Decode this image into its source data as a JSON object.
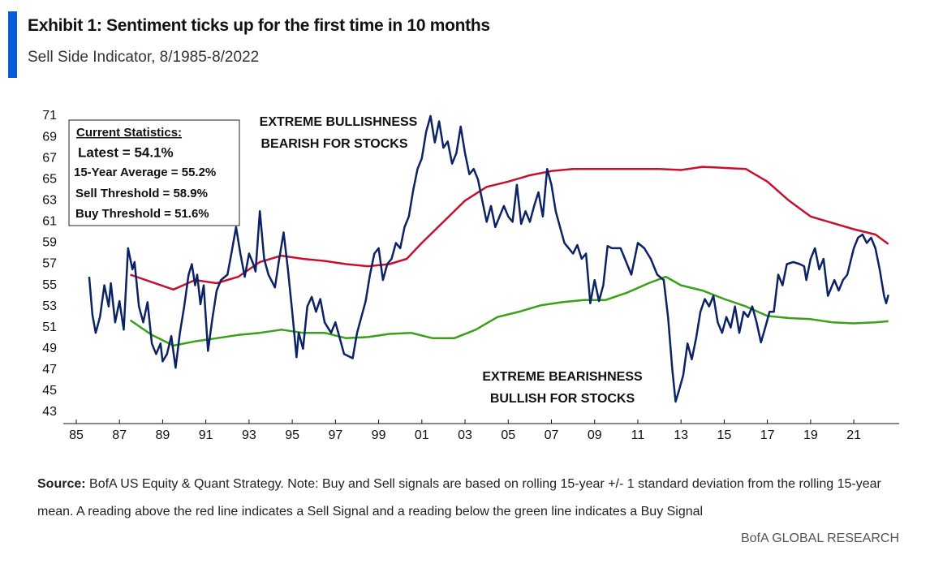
{
  "chart_data": {
    "type": "line",
    "title": "Exhibit 1: Sentiment ticks up for the first time in 10 months",
    "subtitle": "Sell Side Indicator, 8/1985-8/2022",
    "stats_box": [
      "Current Statistics:",
      "Latest = 54.1%",
      "15-Year Average = 55.2%",
      "Sell Threshold = 58.9%",
      "Buy Threshold = 51.6%"
    ],
    "annotations": [
      "EXTREME BULLISHNESS",
      "BEARISH FOR STOCKS",
      "EXTREME BEARISHNESS",
      "BULLISH FOR STOCKS"
    ],
    "source_label": "Source:",
    "source_text": "BofA US Equity & Quant Strategy. Note: Buy and Sell signals are based on rolling 15-year +/- 1 standard deviation from the rolling 15-year mean. A reading above the red line indicates a Sell Signal and a reading below the green line indicates a Buy Signal",
    "footer": "BofA GLOBAL RESEARCH",
    "xlim": [
      1984.4,
      2023.1
    ],
    "ylim": [
      43,
      71
    ],
    "yticks": [
      43,
      45,
      47,
      49,
      51,
      53,
      55,
      57,
      59,
      61,
      63,
      65,
      67,
      69,
      71
    ],
    "xticks": [
      {
        "value": 1985,
        "label": "85"
      },
      {
        "value": 1987,
        "label": "87"
      },
      {
        "value": 1989,
        "label": "89"
      },
      {
        "value": 1991,
        "label": "91"
      },
      {
        "value": 1993,
        "label": "93"
      },
      {
        "value": 1995,
        "label": "95"
      },
      {
        "value": 1997,
        "label": "97"
      },
      {
        "value": 1999,
        "label": "99"
      },
      {
        "value": 2001,
        "label": "01"
      },
      {
        "value": 2003,
        "label": "03"
      },
      {
        "value": 2005,
        "label": "05"
      },
      {
        "value": 2007,
        "label": "07"
      },
      {
        "value": 2009,
        "label": "09"
      },
      {
        "value": 2011,
        "label": "11"
      },
      {
        "value": 2013,
        "label": "13"
      },
      {
        "value": 2015,
        "label": "15"
      },
      {
        "value": 2017,
        "label": "17"
      },
      {
        "value": 2019,
        "label": "19"
      },
      {
        "value": 2021,
        "label": "21"
      }
    ],
    "series": [
      {
        "color": "#0b2265",
        "x": [
          1985.6,
          1985.75,
          1985.9,
          1986.1,
          1986.3,
          1986.5,
          1986.6,
          1986.8,
          1987.0,
          1987.2,
          1987.4,
          1987.6,
          1987.7,
          1987.9,
          1988.1,
          1988.3,
          1988.5,
          1988.7,
          1988.9,
          1989.0,
          1989.2,
          1989.4,
          1989.5,
          1989.6,
          1989.8,
          1990.0,
          1990.2,
          1990.35,
          1990.5,
          1990.6,
          1990.75,
          1990.9,
          1991.1,
          1991.3,
          1991.5,
          1991.7,
          1992.0,
          1992.2,
          1992.4,
          1992.6,
          1992.8,
          1993.0,
          1993.2,
          1993.3,
          1993.5,
          1993.7,
          1993.9,
          1994.2,
          1994.4,
          1994.6,
          1994.8,
          1995.0,
          1995.2,
          1995.3,
          1995.5,
          1995.7,
          1995.9,
          1996.1,
          1996.3,
          1996.5,
          1996.8,
          1997.0,
          1997.2,
          1997.4,
          1997.6,
          1997.8,
          1998.0,
          1998.2,
          1998.4,
          1998.6,
          1998.8,
          1999.0,
          1999.2,
          1999.4,
          1999.6,
          1999.8,
          2000.0,
          2000.2,
          2000.4,
          2000.6,
          2000.8,
          2001.0,
          2001.2,
          2001.4,
          2001.6,
          2001.8,
          2002.0,
          2002.2,
          2002.4,
          2002.6,
          2002.8,
          2003.0,
          2003.2,
          2003.4,
          2003.6,
          2003.8,
          2004.0,
          2004.2,
          2004.4,
          2004.6,
          2004.8,
          2005.0,
          2005.2,
          2005.4,
          2005.6,
          2005.8,
          2006.0,
          2006.2,
          2006.4,
          2006.6,
          2006.8,
          2007.0,
          2007.2,
          2007.4,
          2007.6,
          2007.8,
          2008.0,
          2008.2,
          2008.4,
          2008.6,
          2008.8,
          2009.0,
          2009.2,
          2009.4,
          2009.6,
          2009.8,
          2010.2,
          2010.5,
          2010.7,
          2011.0,
          2011.3,
          2011.6,
          2011.9,
          2012.2,
          2012.4,
          2012.6,
          2012.75,
          2012.9,
          2013.1,
          2013.3,
          2013.5,
          2013.7,
          2013.9,
          2014.1,
          2014.3,
          2014.5,
          2014.7,
          2014.9,
          2015.1,
          2015.3,
          2015.5,
          2015.7,
          2015.9,
          2016.1,
          2016.3,
          2016.5,
          2016.7,
          2016.9,
          2017.1,
          2017.3,
          2017.5,
          2017.7,
          2017.9,
          2018.2,
          2018.5,
          2018.7,
          2018.8,
          2019.0,
          2019.2,
          2019.4,
          2019.6,
          2019.8,
          2020.1,
          2020.3,
          2020.5,
          2020.7,
          2021.0,
          2021.2,
          2021.4,
          2021.6,
          2021.8,
          2022.0,
          2022.2,
          2022.4,
          2022.5,
          2022.6
        ],
        "values": [
          55.8,
          52.2,
          50.5,
          52,
          55,
          53,
          55.2,
          51.5,
          53.5,
          50.8,
          58.5,
          56.5,
          57.2,
          53,
          51.5,
          53.4,
          49.5,
          48.5,
          49.5,
          47.8,
          48.5,
          50.2,
          48.7,
          47.2,
          50.5,
          53,
          56,
          57,
          55,
          56,
          53.2,
          55,
          48.8,
          51.8,
          54.5,
          55.5,
          56,
          58.2,
          60.5,
          58,
          55.8,
          58,
          57,
          56.3,
          62,
          57.5,
          56,
          54.8,
          57.5,
          60,
          56.5,
          52.5,
          48.2,
          50.5,
          49,
          53,
          53.9,
          52.5,
          53.7,
          51.5,
          50.5,
          51.5,
          50,
          48.5,
          48.3,
          48.1,
          50.5,
          52,
          53.5,
          56,
          58,
          58.5,
          55.5,
          57,
          57.5,
          59,
          58.5,
          60.5,
          61.5,
          64,
          66,
          67,
          69.5,
          71,
          68.5,
          70.5,
          68,
          68.6,
          66.5,
          67.5,
          70,
          67.5,
          65.5,
          66,
          65,
          63,
          61,
          62.5,
          60.5,
          61.5,
          62.5,
          61.5,
          61,
          64.5,
          60.8,
          62,
          61,
          62.5,
          63.8,
          61.5,
          66,
          64.5,
          62,
          60.5,
          59,
          58.5,
          58,
          58.8,
          57.5,
          58,
          53.3,
          55.5,
          53.5,
          55,
          58.7,
          58.5,
          58.5,
          57,
          56,
          59,
          58.5,
          57.5,
          56,
          55.5,
          52,
          47,
          44,
          45,
          46.5,
          49.5,
          48,
          50,
          52.5,
          53.7,
          53,
          54,
          51.5,
          50.5,
          52,
          51,
          53,
          50.5,
          52.5,
          52,
          53,
          51.5,
          49.6,
          51,
          52.5,
          52.5,
          56,
          55,
          57,
          57.2,
          57,
          56.8,
          55.5,
          57.5,
          58.5,
          56.5,
          57.5,
          54,
          55.5,
          54.5,
          55.5,
          56,
          58.5,
          59.5,
          59.8,
          59,
          59.5,
          58.5,
          56.5,
          54,
          53.3,
          54.1
        ]
      },
      {
        "color": "#c8102e",
        "x": [
          1987.5,
          1988.5,
          1989.5,
          1990.5,
          1991.5,
          1992.5,
          1993.5,
          1994.5,
          1995.5,
          1996.5,
          1997.5,
          1998.5,
          1999.5,
          2000.3,
          2001.0,
          2002.0,
          2003.0,
          2004.0,
          2005.0,
          2006.0,
          2007.0,
          2008.0,
          2010.0,
          2012.0,
          2013.0,
          2014.0,
          2016.0,
          2017.0,
          2018.0,
          2019.0,
          2020.0,
          2021.0,
          2022.0,
          2022.6
        ],
        "values": [
          56.0,
          55.3,
          54.6,
          55.5,
          55.2,
          55.8,
          57.2,
          57.8,
          57.5,
          57.3,
          57.0,
          56.8,
          57.0,
          57.5,
          59,
          61,
          63,
          64.3,
          64.8,
          65.4,
          65.8,
          66.0,
          66,
          66.0,
          65.9,
          66.2,
          66.0,
          64.8,
          63,
          61.5,
          60.9,
          60.3,
          59.8,
          58.9
        ]
      },
      {
        "color": "#3aa018",
        "x": [
          1987.5,
          1988.5,
          1989.5,
          1990.5,
          1991.5,
          1992.5,
          1993.5,
          1994.5,
          1995.5,
          1996.5,
          1997.5,
          1998.5,
          1999.5,
          2000.5,
          2001.5,
          2002.5,
          2003.5,
          2004.5,
          2005.5,
          2006.5,
          2007.5,
          2008.5,
          2009.5,
          2010.5,
          2011.5,
          2012.3,
          2013.0,
          2014.0,
          2015.0,
          2016.0,
          2017.0,
          2018.0,
          2019.0,
          2020.0,
          2021.0,
          2022.0,
          2022.6
        ],
        "values": [
          51.7,
          50.3,
          49.3,
          49.7,
          50.0,
          50.3,
          50.5,
          50.8,
          50.5,
          50.5,
          50.0,
          50.1,
          50.4,
          50.5,
          50.0,
          50.0,
          50.8,
          52.0,
          52.5,
          53.1,
          53.4,
          53.6,
          53.6,
          54.3,
          55.2,
          55.8,
          55.0,
          54.5,
          53.7,
          53.0,
          52.1,
          51.9,
          51.8,
          51.5,
          51.4,
          51.5,
          51.6
        ]
      }
    ]
  }
}
